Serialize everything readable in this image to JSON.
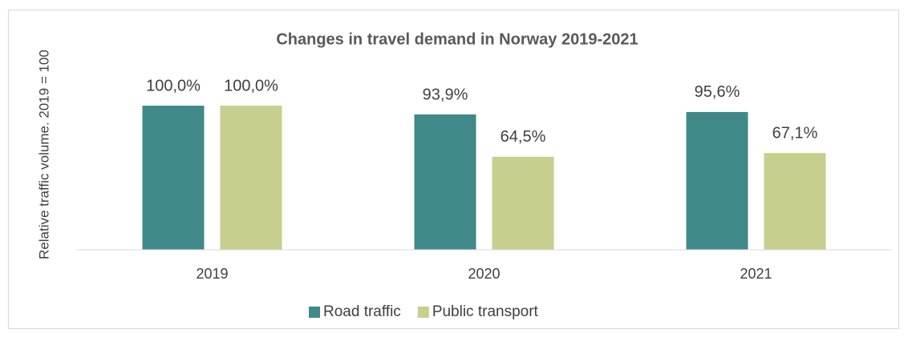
{
  "chart_data": {
    "type": "bar",
    "title": "Changes in travel demand in Norway 2019-2021",
    "ylabel": "Relative traffic volume. 2019 = 100",
    "categories": [
      "2019",
      "2020",
      "2021"
    ],
    "series": [
      {
        "name": "Road traffic",
        "color": "#3f898b",
        "values": [
          100.0,
          93.9,
          95.6
        ],
        "value_labels": [
          "100,0%",
          "93,9%",
          "95,6%"
        ]
      },
      {
        "name": "Public transport",
        "color": "#c8ce8e",
        "values": [
          100.0,
          64.5,
          67.1
        ],
        "value_labels": [
          "100,0%",
          "64,5%",
          "67,1%"
        ]
      }
    ],
    "ylim": [
      0,
      150
    ],
    "legend": "bottom"
  }
}
